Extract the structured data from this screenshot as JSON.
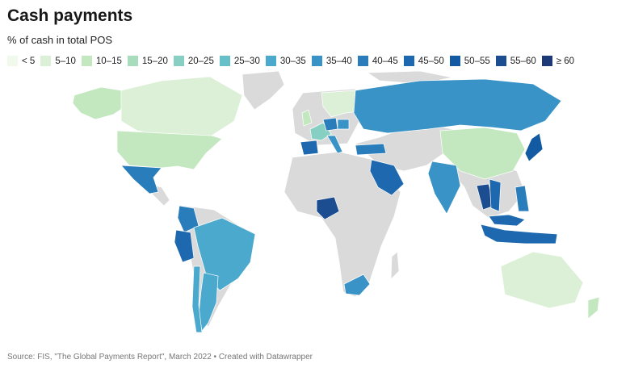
{
  "title": "Cash payments",
  "subtitle": "% of cash in total POS",
  "legend": [
    {
      "label": "< 5",
      "color": "#f0f9ec"
    },
    {
      "label": "5–10",
      "color": "#dbf0d6"
    },
    {
      "label": "10–15",
      "color": "#c3e8c0"
    },
    {
      "label": "15–20",
      "color": "#a7dcbd"
    },
    {
      "label": "20–25",
      "color": "#86cfc2"
    },
    {
      "label": "25–30",
      "color": "#67bfc7"
    },
    {
      "label": "30–35",
      "color": "#4ba9cd"
    },
    {
      "label": "35–40",
      "color": "#3a93c6"
    },
    {
      "label": "40–45",
      "color": "#2a7dbb"
    },
    {
      "label": "45–50",
      "color": "#1d68ae"
    },
    {
      "label": "50–55",
      "color": "#125aa1"
    },
    {
      "label": "55–60",
      "color": "#1c4d91"
    },
    {
      "label": "≥ 60",
      "color": "#1e3a76"
    }
  ],
  "colors": {
    "no_data": "#dadada",
    "border": "#ffffff"
  },
  "source": "Source: FIS, \"The Global Payments Report\", March 2022 • Created with Datawrapper",
  "regions": [
    {
      "name": "Alaska",
      "bin": 10
    },
    {
      "name": "Canada",
      "bin": 5
    },
    {
      "name": "United States",
      "bin": 10
    },
    {
      "name": "Mexico",
      "bin": 40
    },
    {
      "name": "Colombia",
      "bin": 40
    },
    {
      "name": "Peru",
      "bin": 45
    },
    {
      "name": "Brazil",
      "bin": 30
    },
    {
      "name": "Argentina",
      "bin": 30
    },
    {
      "name": "Chile",
      "bin": 30
    },
    {
      "name": "United Kingdom",
      "bin": 10
    },
    {
      "name": "Scandinavia",
      "bin": 5
    },
    {
      "name": "France",
      "bin": 20
    },
    {
      "name": "Spain",
      "bin": 45
    },
    {
      "name": "Germany",
      "bin": 40
    },
    {
      "name": "Poland",
      "bin": 35
    },
    {
      "name": "Italy",
      "bin": 35
    },
    {
      "name": "Turkey",
      "bin": 40
    },
    {
      "name": "Russia",
      "bin": 35
    },
    {
      "name": "China",
      "bin": 10
    },
    {
      "name": "Japan",
      "bin": 50
    },
    {
      "name": "India",
      "bin": 35
    },
    {
      "name": "Saudi Arabia",
      "bin": 45
    },
    {
      "name": "Nigeria",
      "bin": 55
    },
    {
      "name": "South Africa",
      "bin": 35
    },
    {
      "name": "Thailand",
      "bin": 55
    },
    {
      "name": "Vietnam",
      "bin": 45
    },
    {
      "name": "Philippines",
      "bin": 40
    },
    {
      "name": "Malaysia",
      "bin": 45
    },
    {
      "name": "Indonesia",
      "bin": 45
    },
    {
      "name": "Australia",
      "bin": 5
    },
    {
      "name": "New Zealand",
      "bin": 10
    }
  ]
}
